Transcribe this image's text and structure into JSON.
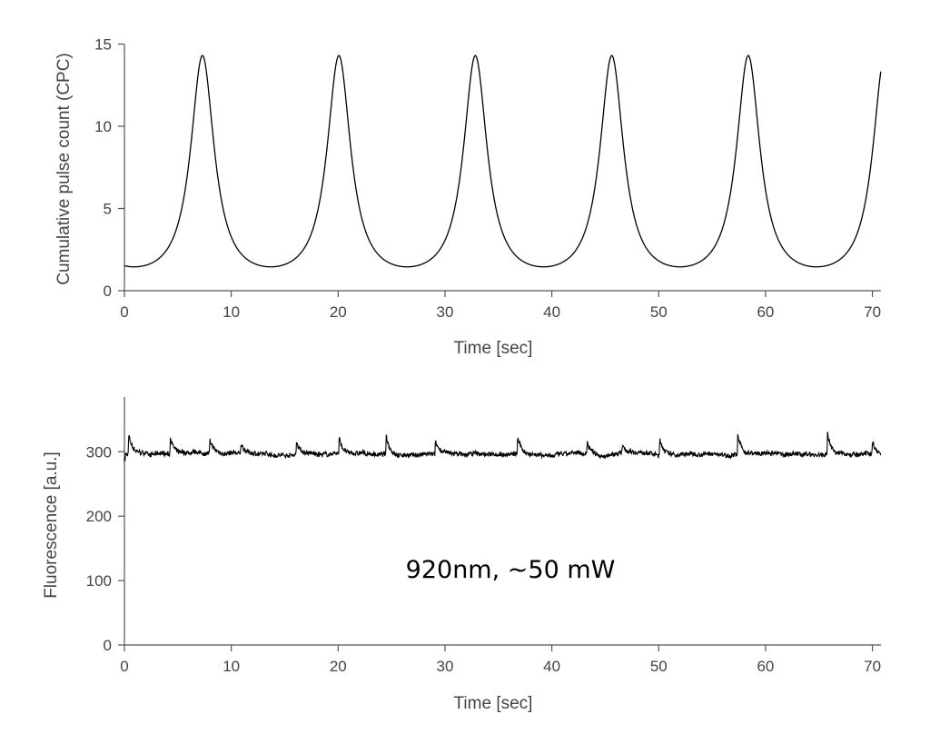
{
  "chart_data": [
    {
      "type": "line",
      "title": "",
      "xlabel": "Time [sec]",
      "ylabel": "Cumulative pulse count (CPC)",
      "xlim": [
        0,
        70.8
      ],
      "ylim": [
        0,
        15
      ],
      "xticks": [
        "0",
        "10",
        "20",
        "30",
        "40",
        "50",
        "60",
        "70"
      ],
      "yticks": [
        "0",
        "5",
        "10",
        "15"
      ],
      "grid": false,
      "series": [
        {
          "name": "CPC",
          "peak_times": [
            7.3,
            20.05,
            32.8,
            45.6,
            58.35
          ],
          "peak_value": 14.3,
          "min_value": 1.45,
          "period": 12.77,
          "color": "#000000"
        }
      ]
    },
    {
      "type": "line",
      "title": "",
      "xlabel": "Time [sec]",
      "ylabel": "Fluorescence [a.u.]",
      "xlim": [
        0,
        70.8
      ],
      "ylim": [
        0,
        385
      ],
      "xticks": [
        "0",
        "10",
        "20",
        "30",
        "40",
        "50",
        "60",
        "70"
      ],
      "yticks": [
        "0",
        "100",
        "200",
        "300"
      ],
      "grid": false,
      "annotation": "920nm, ~50 mW",
      "series": [
        {
          "name": "Fluorescence",
          "baseline": 296,
          "spike_times": [
            0.4,
            4.3,
            8.0,
            10.9,
            16.1,
            20.1,
            24.5,
            29.1,
            36.8,
            43.3,
            46.6,
            50.1,
            57.4,
            65.8,
            70.0
          ],
          "spike_peaks": [
            325,
            324,
            316,
            313,
            318,
            322,
            323,
            315,
            323,
            315,
            310,
            320,
            325,
            328,
            318
          ],
          "color": "#000000"
        }
      ]
    }
  ]
}
